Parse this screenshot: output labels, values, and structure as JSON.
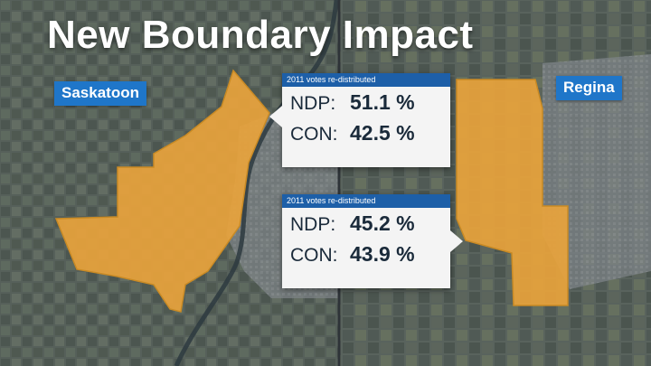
{
  "title": "New Boundary Impact",
  "cities": {
    "left": "Saskatoon",
    "right": "Regina"
  },
  "results": [
    {
      "caption": "2011 votes re-distributed",
      "rows": [
        {
          "party": "NDP:",
          "percent": "51.1 %"
        },
        {
          "party": "CON:",
          "percent": "42.5 %"
        }
      ]
    },
    {
      "caption": "2011 votes re-distributed",
      "rows": [
        {
          "party": "NDP:",
          "percent": "45.2 %"
        },
        {
          "party": "CON:",
          "percent": "43.9 %"
        }
      ]
    }
  ],
  "colors": {
    "boundary_fill": "#e8a33c",
    "label_blue": "#1f76c9",
    "caption_blue": "#1d5fa8",
    "box_bg": "#f4f4f4"
  }
}
